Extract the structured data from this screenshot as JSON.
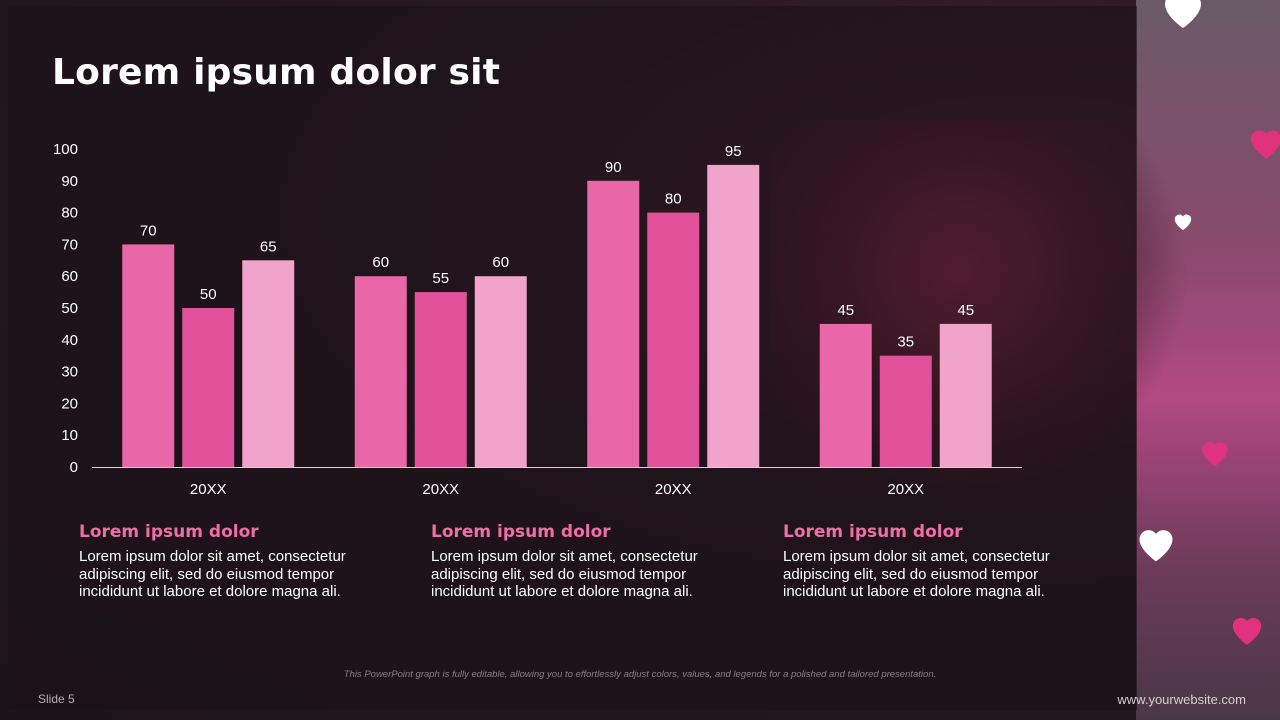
{
  "slide": {
    "title": "Lorem ipsum dolor sit",
    "footnote": "This PowerPoint graph is fully editable, allowing you to effortlessly adjust colors, values, and legends for a polished and tailored presentation.",
    "slide_number": "Slide 5",
    "website": "www.yourwebsite.com"
  },
  "text_blocks": [
    {
      "heading": "Lorem ipsum dolor",
      "body": "Lorem ipsum dolor sit amet, consectetur adipiscing elit, sed do eiusmod tempor incididunt ut labore et dolore magna ali."
    },
    {
      "heading": "Lorem ipsum dolor",
      "body": "Lorem ipsum dolor sit amet, consectetur adipiscing elit, sed do eiusmod tempor incididunt ut labore et dolore magna ali."
    },
    {
      "heading": "Lorem ipsum dolor",
      "body": "Lorem ipsum dolor sit amet, consectetur adipiscing elit, sed do eiusmod tempor incididunt ut labore et dolore magna ali."
    }
  ],
  "colors": {
    "series": [
      "#e967a6",
      "#e0519a",
      "#f0a3cb"
    ],
    "heading_accent": "#ec6fa8",
    "heart_white": "#ffffff",
    "heart_pink": "#e0327e"
  },
  "icons": [
    "heart-icon"
  ],
  "chart_data": {
    "type": "bar",
    "categories": [
      "20XX",
      "20XX",
      "20XX",
      "20XX"
    ],
    "series": [
      {
        "values": [
          70,
          60,
          90,
          45
        ]
      },
      {
        "values": [
          50,
          55,
          80,
          35
        ]
      },
      {
        "values": [
          65,
          60,
          95,
          45
        ]
      }
    ],
    "y_ticks": [
      "0",
      "10",
      "20",
      "30",
      "40",
      "50",
      "60",
      "70",
      "80",
      "90",
      "100"
    ],
    "ylim": [
      0,
      100
    ],
    "grid": false,
    "legend": "none",
    "data_labels": true
  }
}
